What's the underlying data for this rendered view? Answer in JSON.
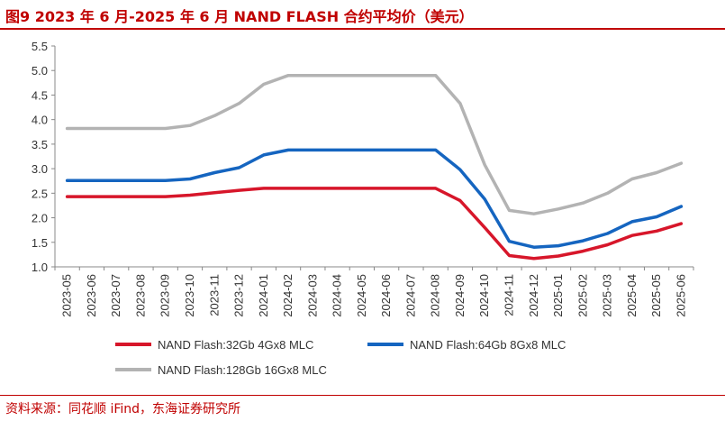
{
  "title": "图9  2023 年 6 月-2025 年 6 月 NAND FLASH 合约平均价（美元）",
  "source": "资料来源：同花顺 iFind，东海证券研究所",
  "chart_data": {
    "type": "line",
    "title": "图9  2023 年 6 月-2025 年 6 月 NAND FLASH 合约平均价（美元）",
    "xlabel": "",
    "ylabel": "",
    "ylim": [
      1.0,
      5.5
    ],
    "yticks": [
      "1.0",
      "1.5",
      "2.0",
      "2.5",
      "3.0",
      "3.5",
      "4.0",
      "4.5",
      "5.0",
      "5.5"
    ],
    "grid": false,
    "legend_position": "bottom",
    "categories": [
      "2023-05",
      "2023-06",
      "2023-07",
      "2023-08",
      "2023-09",
      "2023-10",
      "2023-11",
      "2023-12",
      "2024-01",
      "2024-02",
      "2024-03",
      "2024-04",
      "2024-05",
      "2024-06",
      "2024-07",
      "2024-08",
      "2024-09",
      "2024-10",
      "2024-11",
      "2024-12",
      "2025-01",
      "2025-02",
      "2025-03",
      "2025-04",
      "2025-05",
      "2025-06"
    ],
    "series": [
      {
        "name": "NAND Flash:32Gb 4Gx8 MLC",
        "color": "#d7162a",
        "values": [
          2.43,
          2.43,
          2.43,
          2.43,
          2.43,
          2.46,
          2.51,
          2.56,
          2.6,
          2.6,
          2.6,
          2.6,
          2.6,
          2.6,
          2.6,
          2.6,
          2.35,
          1.8,
          1.23,
          1.17,
          1.22,
          1.32,
          1.45,
          1.64,
          1.73,
          1.88
        ]
      },
      {
        "name": "NAND Flash:64Gb 8Gx8 MLC",
        "color": "#1565c0",
        "values": [
          2.76,
          2.76,
          2.76,
          2.76,
          2.76,
          2.79,
          2.92,
          3.02,
          3.28,
          3.38,
          3.38,
          3.38,
          3.38,
          3.38,
          3.38,
          3.38,
          2.98,
          2.38,
          1.52,
          1.4,
          1.43,
          1.53,
          1.68,
          1.92,
          2.02,
          2.23
        ]
      },
      {
        "name": "NAND Flash:128Gb 16Gx8 MLC",
        "color": "#b3b3b3",
        "values": [
          3.82,
          3.82,
          3.82,
          3.82,
          3.82,
          3.88,
          4.08,
          4.33,
          4.72,
          4.9,
          4.9,
          4.9,
          4.9,
          4.9,
          4.9,
          4.9,
          4.33,
          3.08,
          2.15,
          2.08,
          2.18,
          2.3,
          2.5,
          2.79,
          2.92,
          3.11
        ]
      }
    ]
  }
}
